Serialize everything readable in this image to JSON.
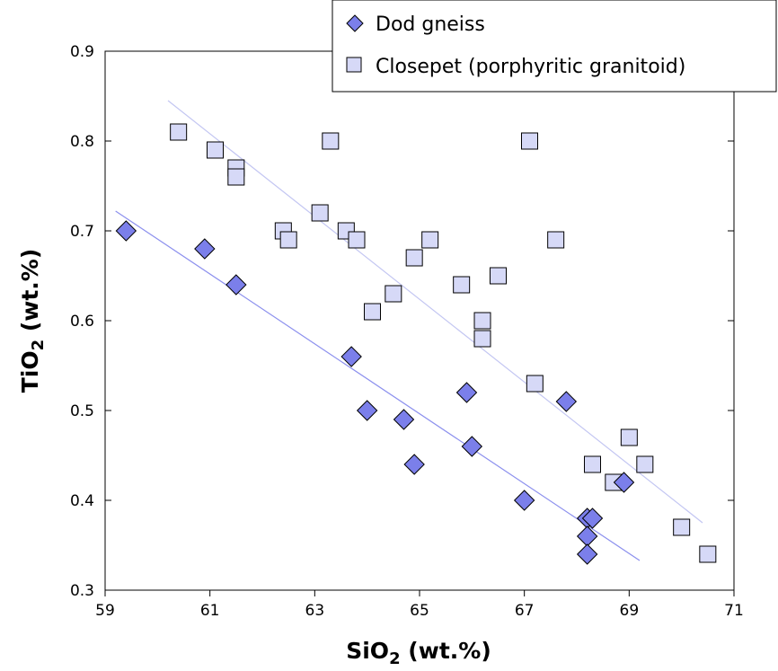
{
  "chart_data": {
    "type": "scatter",
    "xlabel_main": "SiO",
    "xlabel_sub": "2",
    "xlabel_unit": " (wt.%)",
    "ylabel_main": "TiO",
    "ylabel_sub": "2",
    "ylabel_unit": " (wt.%)",
    "xlim": [
      59,
      71
    ],
    "ylim": [
      0.3,
      0.9
    ],
    "xticks": [
      59,
      61,
      63,
      65,
      67,
      69,
      71
    ],
    "yticks": [
      0.3,
      0.4,
      0.5,
      0.6,
      0.7,
      0.8,
      0.9
    ],
    "legend_position": "top-right",
    "series": [
      {
        "name": "Dod gneiss",
        "marker": "diamond",
        "color": "#7b7fea",
        "points": [
          [
            59.4,
            0.7
          ],
          [
            60.9,
            0.68
          ],
          [
            61.5,
            0.64
          ],
          [
            63.7,
            0.56
          ],
          [
            64.0,
            0.5
          ],
          [
            64.7,
            0.49
          ],
          [
            64.9,
            0.44
          ],
          [
            65.9,
            0.52
          ],
          [
            66.0,
            0.46
          ],
          [
            67.0,
            0.4
          ],
          [
            67.8,
            0.51
          ],
          [
            68.2,
            0.38
          ],
          [
            68.3,
            0.38
          ],
          [
            68.2,
            0.36
          ],
          [
            68.2,
            0.34
          ],
          [
            68.9,
            0.42
          ]
        ],
        "trend": [
          [
            59.2,
            0.722
          ],
          [
            69.2,
            0.333
          ]
        ]
      },
      {
        "name": "Closepet (porphyritic granitoid)",
        "marker": "square",
        "color": "#d6d9f7",
        "points": [
          [
            60.4,
            0.81
          ],
          [
            61.1,
            0.79
          ],
          [
            61.5,
            0.77
          ],
          [
            61.5,
            0.76
          ],
          [
            62.4,
            0.7
          ],
          [
            62.5,
            0.69
          ],
          [
            63.1,
            0.72
          ],
          [
            63.3,
            0.8
          ],
          [
            63.6,
            0.7
          ],
          [
            63.8,
            0.69
          ],
          [
            64.1,
            0.61
          ],
          [
            64.5,
            0.63
          ],
          [
            64.9,
            0.67
          ],
          [
            65.2,
            0.69
          ],
          [
            65.8,
            0.64
          ],
          [
            66.2,
            0.6
          ],
          [
            66.2,
            0.58
          ],
          [
            66.5,
            0.65
          ],
          [
            67.1,
            0.8
          ],
          [
            67.2,
            0.53
          ],
          [
            67.6,
            0.69
          ],
          [
            68.3,
            0.44
          ],
          [
            68.7,
            0.42
          ],
          [
            69.0,
            0.47
          ],
          [
            69.3,
            0.44
          ],
          [
            70.0,
            0.37
          ],
          [
            70.5,
            0.34
          ]
        ],
        "trend": [
          [
            60.2,
            0.845
          ],
          [
            70.4,
            0.375
          ]
        ]
      }
    ]
  }
}
